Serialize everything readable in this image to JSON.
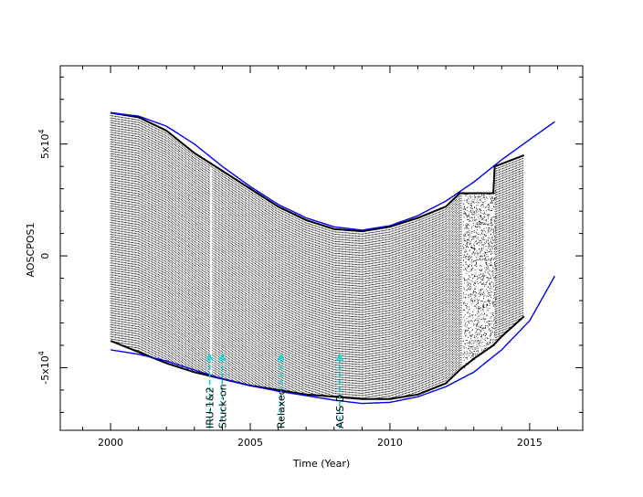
{
  "chart_data": {
    "type": "scatter",
    "title": "",
    "xlabel": "Time (Year)",
    "ylabel": "AOSCPOS1",
    "xlim": [
      1998.2,
      2016.9
    ],
    "ylim": [
      -78000,
      85000
    ],
    "xticks": [
      {
        "value": 2000,
        "label": "2000"
      },
      {
        "value": 2005,
        "label": "2005"
      },
      {
        "value": 2010,
        "label": "2010"
      },
      {
        "value": 2015,
        "label": "2015"
      }
    ],
    "yticks": [
      {
        "value": 50000,
        "base": "5x10",
        "exp": "4"
      },
      {
        "value": 0,
        "base": "0",
        "exp": ""
      },
      {
        "value": -50000,
        "base": "-5x10",
        "exp": "4"
      }
    ],
    "envelope_upper": [
      [
        2000.0,
        64000
      ],
      [
        2001.0,
        62500
      ],
      [
        2002.0,
        58000
      ],
      [
        2003.0,
        50000
      ],
      [
        2004.0,
        40000
      ],
      [
        2005.0,
        31000
      ],
      [
        2006.0,
        23000
      ],
      [
        2007.0,
        17000
      ],
      [
        2008.0,
        13000
      ],
      [
        2009.0,
        11500
      ],
      [
        2010.0,
        13500
      ],
      [
        2011.0,
        18000
      ],
      [
        2012.0,
        24500
      ],
      [
        2013.0,
        33000
      ],
      [
        2014.0,
        43000
      ],
      [
        2015.0,
        52000
      ],
      [
        2015.9,
        60000
      ]
    ],
    "envelope_lower": [
      [
        2000.0,
        -42000
      ],
      [
        2001.0,
        -44000
      ],
      [
        2002.0,
        -47000
      ],
      [
        2003.0,
        -51000
      ],
      [
        2004.0,
        -55000
      ],
      [
        2005.0,
        -58000
      ],
      [
        2006.0,
        -60500
      ],
      [
        2007.0,
        -62500
      ],
      [
        2008.0,
        -64500
      ],
      [
        2009.0,
        -66000
      ],
      [
        2010.0,
        -65500
      ],
      [
        2011.0,
        -63000
      ],
      [
        2012.0,
        -58500
      ],
      [
        2013.0,
        -52000
      ],
      [
        2014.0,
        -42000
      ],
      [
        2015.0,
        -29000
      ],
      [
        2015.9,
        -9000
      ]
    ],
    "data_band": {
      "x_start": 2000.0,
      "x_end": 2014.8,
      "upper": [
        [
          2000.0,
          64000
        ],
        [
          2001.0,
          62000
        ],
        [
          2002.0,
          56000
        ],
        [
          2003.0,
          46000
        ],
        [
          2004.0,
          38000
        ],
        [
          2005.0,
          30000
        ],
        [
          2006.0,
          22000
        ],
        [
          2007.0,
          16000
        ],
        [
          2008.0,
          12000
        ],
        [
          2009.0,
          11000
        ],
        [
          2010.0,
          13000
        ],
        [
          2011.0,
          17000
        ],
        [
          2012.0,
          22000
        ],
        [
          2012.5,
          28000
        ],
        [
          2013.0,
          28000
        ],
        [
          2013.7,
          28000
        ],
        [
          2013.75,
          40000
        ],
        [
          2014.8,
          45000
        ]
      ],
      "lower": [
        [
          2000.0,
          -38000
        ],
        [
          2001.0,
          -43000
        ],
        [
          2002.0,
          -48000
        ],
        [
          2003.0,
          -52000
        ],
        [
          2004.0,
          -55000
        ],
        [
          2005.0,
          -58000
        ],
        [
          2006.0,
          -60000
        ],
        [
          2007.0,
          -62000
        ],
        [
          2008.0,
          -63000
        ],
        [
          2009.0,
          -64000
        ],
        [
          2010.0,
          -64000
        ],
        [
          2011.0,
          -62000
        ],
        [
          2012.0,
          -57000
        ],
        [
          2012.5,
          -51000
        ],
        [
          2013.0,
          -46000
        ],
        [
          2013.7,
          -40000
        ],
        [
          2014.0,
          -36000
        ],
        [
          2014.8,
          -27000
        ]
      ],
      "sparse_region": [
        2012.6,
        2013.75
      ]
    },
    "vertical_events": [
      {
        "x": 2003.55,
        "label": "IRU-1&2"
      },
      {
        "x": 2004.0,
        "label": "Stuck-on"
      },
      {
        "x": 2006.1,
        "label": "Relaxed"
      },
      {
        "x": 2008.2,
        "label": "ACIS D"
      }
    ],
    "colors": {
      "data": "#000000",
      "envelope": "#0000ee",
      "event_arrow": "#00d8d8"
    }
  }
}
